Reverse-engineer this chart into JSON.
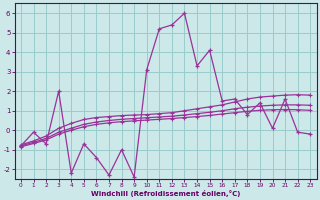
{
  "x": [
    0,
    1,
    2,
    3,
    4,
    5,
    6,
    7,
    8,
    9,
    10,
    11,
    12,
    13,
    14,
    15,
    16,
    17,
    18,
    19,
    20,
    21,
    22,
    23
  ],
  "y_main": [
    -0.8,
    -0.1,
    -0.7,
    2.0,
    -2.2,
    -0.7,
    -1.4,
    -2.3,
    -1.0,
    -2.4,
    3.1,
    5.2,
    5.4,
    6.0,
    3.3,
    4.1,
    1.5,
    1.6,
    0.8,
    1.4,
    0.1,
    1.6,
    -0.1,
    -0.2
  ],
  "y_line1": [
    -0.75,
    -0.55,
    -0.3,
    0.1,
    0.35,
    0.55,
    0.65,
    0.7,
    0.75,
    0.78,
    0.8,
    0.85,
    0.9,
    1.0,
    1.1,
    1.2,
    1.3,
    1.45,
    1.6,
    1.7,
    1.75,
    1.8,
    1.82,
    1.8
  ],
  "y_line2": [
    -0.8,
    -0.62,
    -0.42,
    -0.1,
    0.1,
    0.3,
    0.42,
    0.5,
    0.56,
    0.6,
    0.64,
    0.68,
    0.72,
    0.78,
    0.85,
    0.92,
    1.0,
    1.1,
    1.18,
    1.24,
    1.28,
    1.3,
    1.3,
    1.28
  ],
  "y_line3": [
    -0.85,
    -0.68,
    -0.5,
    -0.2,
    0.0,
    0.18,
    0.3,
    0.38,
    0.44,
    0.48,
    0.52,
    0.56,
    0.6,
    0.65,
    0.7,
    0.76,
    0.83,
    0.9,
    0.97,
    1.02,
    1.05,
    1.06,
    1.05,
    1.02
  ],
  "color_main": "#993399",
  "color_lines": "#993399",
  "bg_color": "#cce8e8",
  "grid_color": "#99cccc",
  "axis_color": "#660066",
  "ylim": [
    -2.5,
    6.5
  ],
  "xlim": [
    -0.5,
    23.5
  ],
  "yticks": [
    -2,
    -1,
    0,
    1,
    2,
    3,
    4,
    5,
    6
  ],
  "xticks": [
    0,
    1,
    2,
    3,
    4,
    5,
    6,
    7,
    8,
    9,
    10,
    11,
    12,
    13,
    14,
    15,
    16,
    17,
    18,
    19,
    20,
    21,
    22,
    23
  ],
  "xlabel": "Windchill (Refroidissement éolien,°C)",
  "marker": "+"
}
